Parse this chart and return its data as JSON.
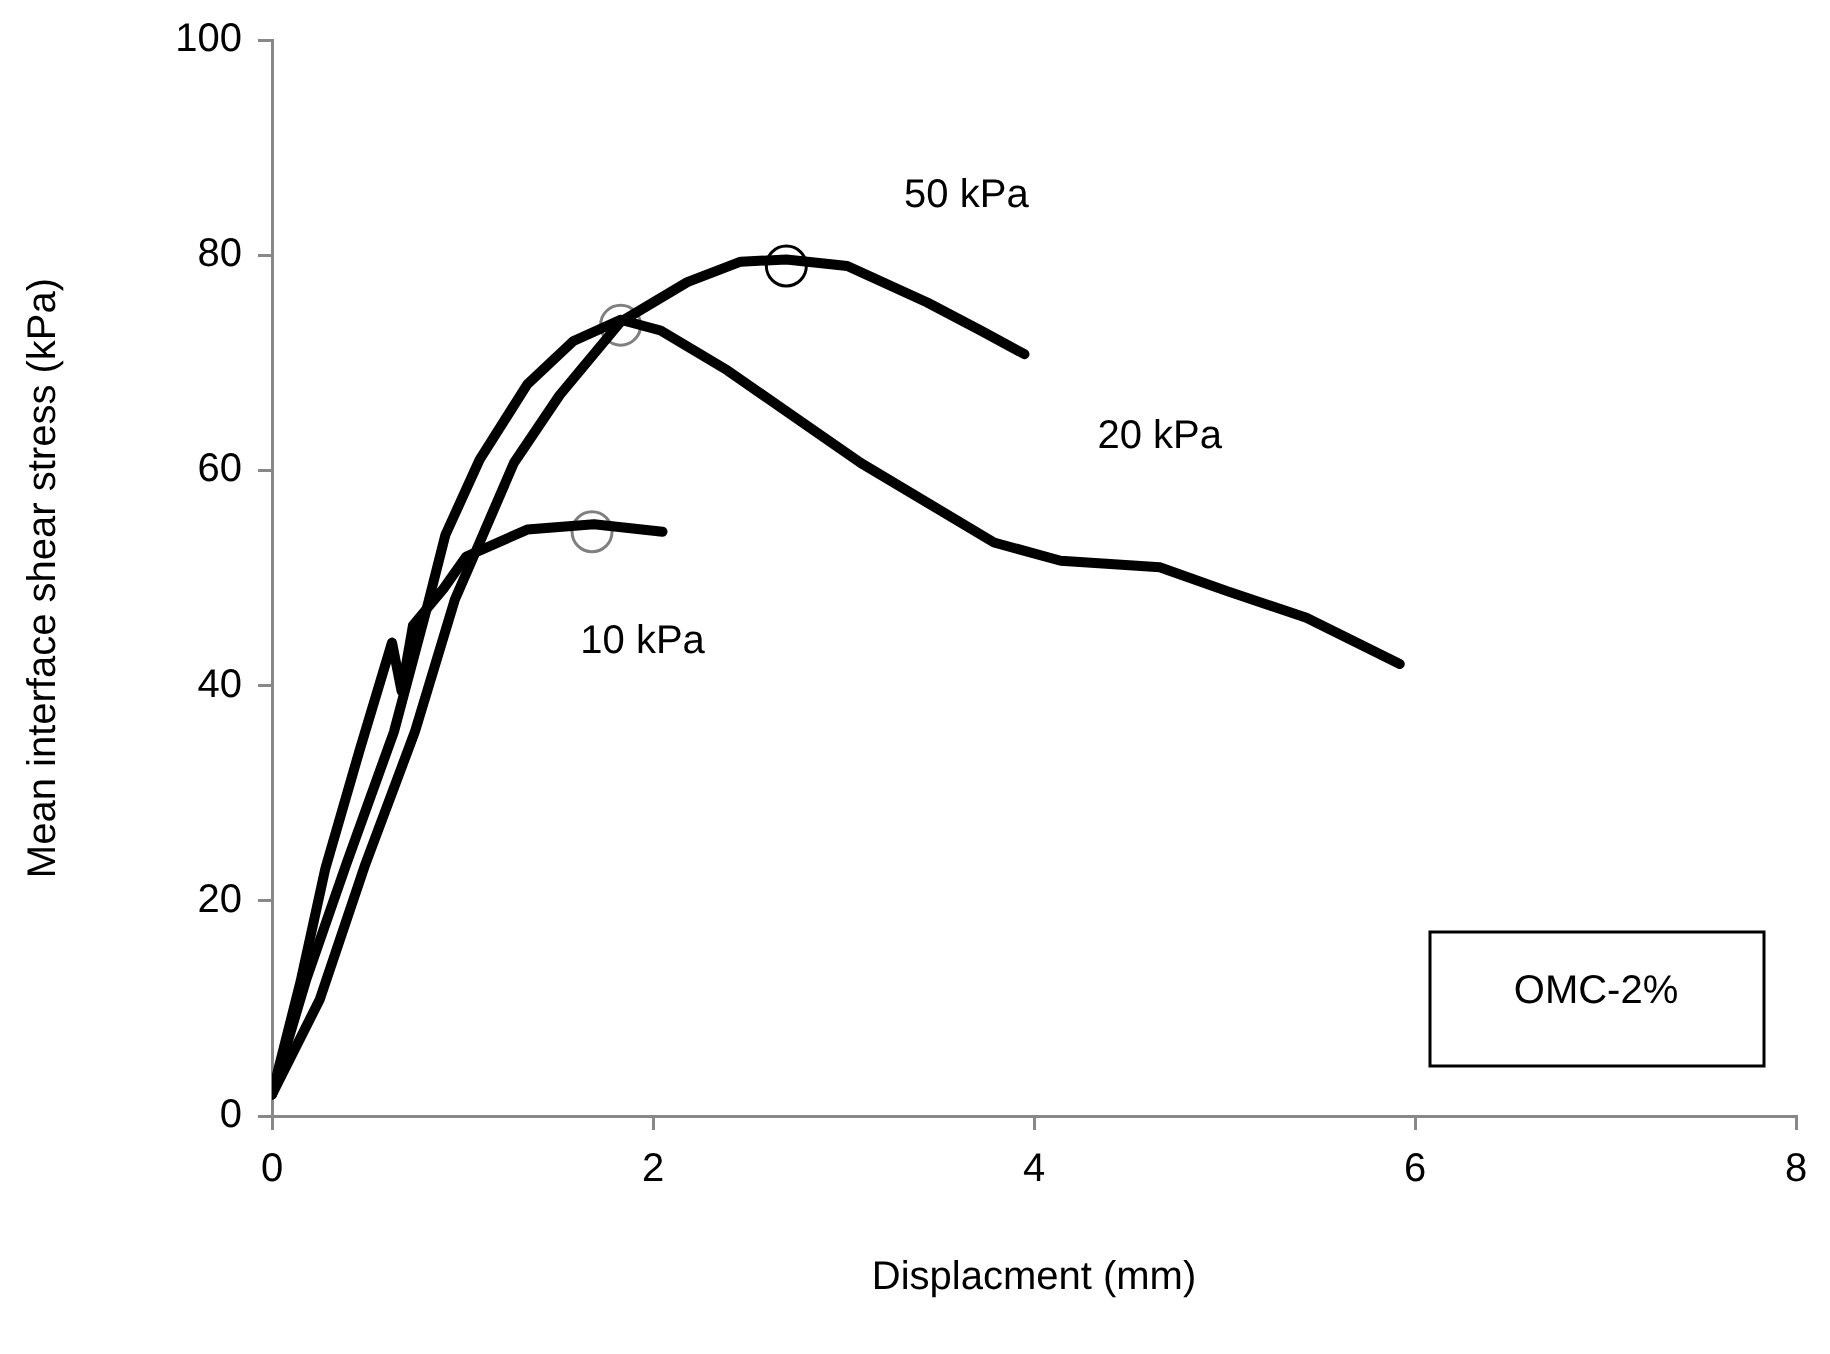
{
  "chart_data": {
    "type": "line",
    "xlabel": "Displacment (mm)",
    "ylabel": "Mean interface shear stress (kPa)",
    "xlim": [
      0,
      8
    ],
    "ylim": [
      0,
      100
    ],
    "xticks": [
      0,
      2,
      4,
      6,
      8
    ],
    "yticks": [
      0,
      20,
      40,
      60,
      80,
      100
    ],
    "grid": false,
    "legend": false,
    "marker": "none",
    "line_style": "solid",
    "annotations": [
      "OMC-2%"
    ],
    "series": [
      {
        "name": "10 kPa",
        "color": "#000000",
        "x": [
          0,
          0.15,
          0.28,
          0.46,
          0.63,
          0.68,
          0.74,
          0.9,
          1.02,
          1.34,
          1.69,
          2.05
        ],
        "values": [
          2,
          12.5,
          23,
          34,
          44,
          39.5,
          45.6,
          49,
          52,
          54.5,
          55,
          54.3
        ]
      },
      {
        "name": "20 kPa",
        "color": "#000000",
        "x": [
          0,
          0.18,
          0.39,
          0.64,
          0.81,
          0.91,
          1.09,
          1.34,
          1.58,
          1.83,
          2.04,
          2.39,
          2.74,
          3.09,
          3.79,
          4.14,
          4.66,
          5.01,
          5.43,
          5.92
        ],
        "values": [
          2,
          12.7,
          23.4,
          35.7,
          47,
          54,
          61,
          68,
          72,
          74,
          73,
          69.3,
          65,
          60.7,
          53.3,
          51.6,
          51,
          48.8,
          46.3,
          42
        ]
      },
      {
        "name": "50 kPa",
        "color": "#000000",
        "x": [
          0,
          0.25,
          0.49,
          0.75,
          0.96,
          1.09,
          1.27,
          1.51,
          1.83,
          2.18,
          2.46,
          2.7,
          3.02,
          3.44,
          3.72,
          3.95
        ],
        "values": [
          2,
          10.8,
          23.4,
          35.7,
          48,
          53.3,
          60.7,
          67,
          73.8,
          77.5,
          79.4,
          79.6,
          79,
          75.6,
          73,
          70.8
        ]
      },
      {
        "type": "scatter",
        "marker": "circle",
        "colors": [
          "#808080",
          "#808080",
          "#000000"
        ],
        "x": [
          1.68,
          1.83,
          2.7
        ],
        "values": [
          54.3,
          73.5,
          79
        ]
      }
    ]
  }
}
